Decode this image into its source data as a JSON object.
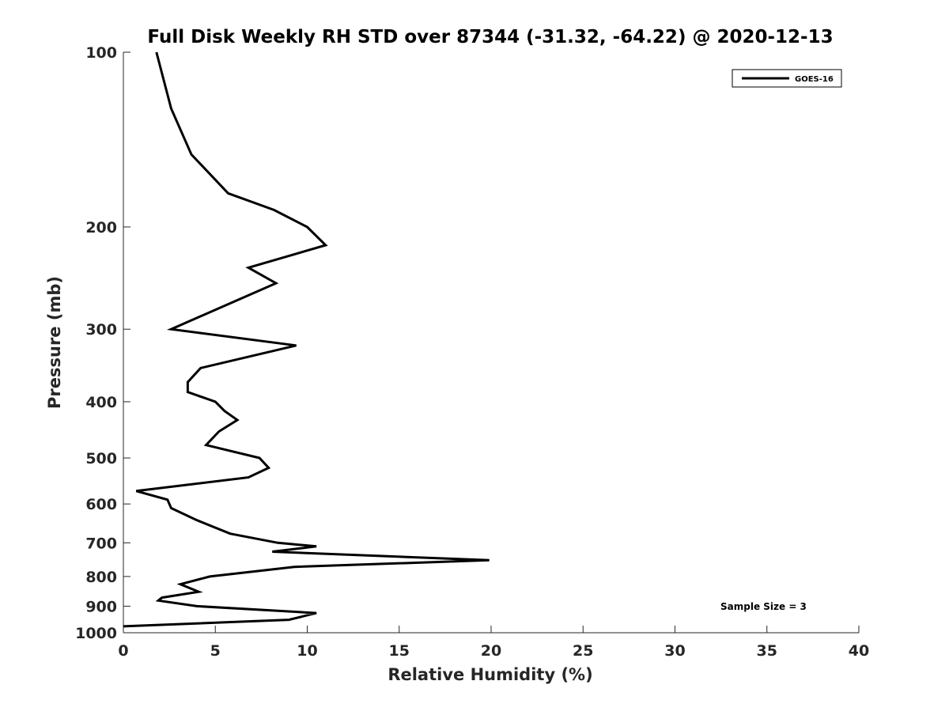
{
  "chart_data": {
    "type": "line",
    "title": "Full Disk Weekly RH STD over 87344 (-31.32, -64.22) @ 2020-12-13",
    "xlabel": "Relative Humidity (%)",
    "ylabel": "Pressure (mb)",
    "xlim": [
      0,
      40
    ],
    "ylim": [
      100,
      1000
    ],
    "yscale": "log",
    "yreversed": true,
    "grid": false,
    "xticks": [
      0,
      5,
      10,
      15,
      20,
      25,
      30,
      35,
      40
    ],
    "xtick_labels": [
      "0",
      "5",
      "10",
      "15",
      "20",
      "25",
      "30",
      "35",
      "40"
    ],
    "yticks": [
      100,
      200,
      300,
      400,
      500,
      600,
      700,
      800,
      900,
      1000
    ],
    "ytick_labels": [
      "100",
      "200",
      "300",
      "400",
      "500",
      "600",
      "700",
      "800",
      "900",
      "1000"
    ],
    "legend": {
      "position": "top-right",
      "entries": [
        "GOES-16"
      ]
    },
    "annotation": "Sample Size = 3",
    "series": [
      {
        "name": "GOES-16",
        "color": "#000000",
        "x": [
          1.8,
          2.6,
          3.7,
          5.7,
          8.2,
          10.0,
          11.0,
          6.8,
          8.3,
          2.6,
          9.4,
          4.2,
          3.5,
          3.5,
          5.0,
          5.5,
          6.2,
          5.2,
          4.5,
          7.4,
          7.9,
          6.8,
          0.7,
          2.4,
          2.6,
          4.0,
          5.8,
          8.4,
          10.5,
          8.1,
          19.9,
          9.3,
          4.7,
          3.1,
          4.1,
          2.1,
          1.9,
          4.0,
          10.5,
          9.0,
          0.0
        ],
        "y": [
          100,
          125,
          150,
          175,
          187,
          200,
          215,
          235,
          250,
          300,
          320,
          350,
          370,
          385,
          400,
          415,
          430,
          450,
          475,
          500,
          520,
          540,
          570,
          590,
          610,
          640,
          675,
          700,
          710,
          725,
          750,
          770,
          800,
          825,
          850,
          870,
          880,
          900,
          925,
          950,
          975
        ]
      }
    ]
  }
}
